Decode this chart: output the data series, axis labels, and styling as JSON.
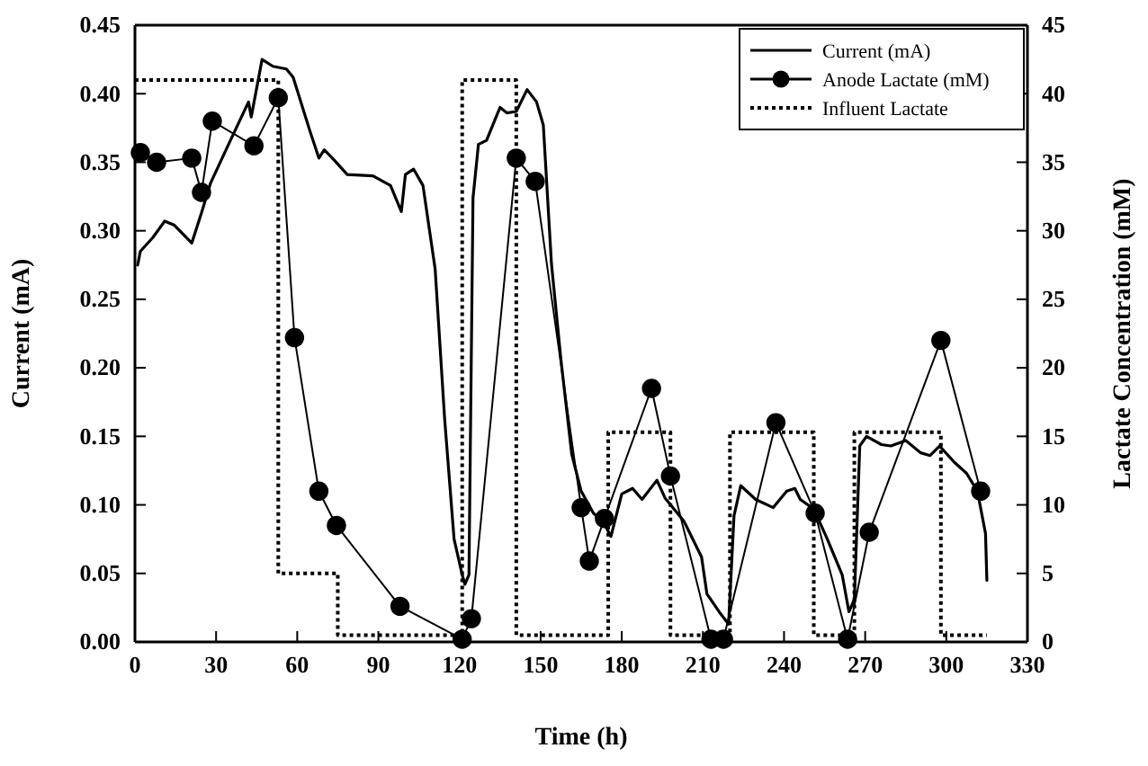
{
  "chart_data": {
    "type": "line",
    "xlabel": "Time (h)",
    "ylabel": "Current (mA)",
    "y2label": "Lactate Concentration (mM)",
    "xlim": [
      0,
      330
    ],
    "xticks": [
      0,
      30,
      60,
      90,
      120,
      150,
      180,
      210,
      240,
      270,
      300,
      330
    ],
    "ylim": [
      0,
      0.45
    ],
    "yticks": [
      {
        "value": 0,
        "label": "0.00"
      },
      {
        "value": 0.05,
        "label": "0.05"
      },
      {
        "value": 0.1,
        "label": "0.10"
      },
      {
        "value": 0.15,
        "label": "0.15"
      },
      {
        "value": 0.2,
        "label": "0.20"
      },
      {
        "value": 0.25,
        "label": "0.25"
      },
      {
        "value": 0.3,
        "label": "0.30"
      },
      {
        "value": 0.35,
        "label": "0.35"
      },
      {
        "value": 0.4,
        "label": "0.40"
      },
      {
        "value": 0.45,
        "label": "0.45"
      }
    ],
    "y2lim": [
      0,
      45
    ],
    "y2ticks": [
      0,
      5,
      10,
      15,
      20,
      25,
      30,
      35,
      40,
      45
    ],
    "grid": false,
    "legend": "top right",
    "series": [
      {
        "name": "Current (mA)",
        "color": "#000000",
        "marker": "none",
        "line_style": "solid",
        "x": [
          1,
          2,
          6.6,
          11,
          14.6,
          21,
          24.6,
          28,
          34.6,
          42,
          43,
          47,
          51,
          56,
          58.5,
          64.5,
          68,
          70,
          73,
          78.5,
          88,
          94.5,
          98.5,
          100,
          103,
          106.5,
          111,
          114.5,
          118,
          121,
          122,
          123.5,
          125,
          127,
          130,
          135,
          137.5,
          141,
          145,
          148.5,
          151,
          154,
          157.5,
          161.5,
          165,
          169.5,
          173,
          176,
          180,
          184,
          187.5,
          193,
          196,
          203,
          209.5,
          211.5,
          216,
          219.5,
          221.5,
          224,
          229.5,
          236,
          241,
          244,
          246,
          251,
          256,
          261.5,
          264,
          266,
          268,
          270.5,
          276,
          279.5,
          285,
          290.5,
          294,
          297.5,
          303,
          307.5,
          311.5,
          314.5,
          315
        ],
        "values": [
          0.275,
          0.285,
          0.295,
          0.307,
          0.304,
          0.291,
          0.313,
          0.335,
          0.363,
          0.394,
          0.383,
          0.425,
          0.42,
          0.418,
          0.412,
          0.374,
          0.353,
          0.359,
          0.353,
          0.341,
          0.34,
          0.333,
          0.314,
          0.341,
          0.345,
          0.333,
          0.272,
          0.163,
          0.075,
          0.049,
          0.042,
          0.049,
          0.324,
          0.363,
          0.366,
          0.39,
          0.386,
          0.387,
          0.403,
          0.394,
          0.377,
          0.276,
          0.206,
          0.137,
          0.11,
          0.094,
          0.088,
          0.077,
          0.108,
          0.112,
          0.104,
          0.118,
          0.105,
          0.088,
          0.062,
          0.035,
          0.022,
          0.013,
          0.092,
          0.114,
          0.104,
          0.098,
          0.11,
          0.112,
          0.104,
          0.097,
          0.075,
          0.049,
          0.022,
          0.031,
          0.143,
          0.15,
          0.144,
          0.143,
          0.147,
          0.138,
          0.136,
          0.143,
          0.131,
          0.123,
          0.11,
          0.079,
          0.045
        ]
      },
      {
        "name": "Anode Lactate (mM)",
        "type": "line",
        "axis": "y2",
        "color": "#000000",
        "marker": "circle",
        "line_style": "solid",
        "x": [
          2,
          8,
          21,
          24.6,
          28.6,
          44,
          53,
          59,
          68,
          74.5,
          98,
          121,
          124.4,
          141,
          148,
          165,
          168,
          173.6,
          191,
          198,
          213,
          217.6,
          237,
          251.5,
          263.5,
          271.5,
          298,
          312.7
        ],
        "values": [
          35.7,
          35,
          35.3,
          32.8,
          38,
          36.2,
          39.7,
          22.2,
          11,
          8.5,
          2.6,
          0.2,
          1.7,
          35.3,
          33.6,
          9.8,
          5.9,
          9,
          18.5,
          12.1,
          0.2,
          0.2,
          16,
          9.4,
          0.2,
          8,
          22,
          11
        ]
      },
      {
        "name": "Influent Lactate",
        "type": "step",
        "axis": "y2",
        "color": "#000000",
        "marker": "none",
        "line_style": "dotted",
        "x": [
          0,
          53,
          75,
          121,
          141,
          175,
          198,
          220,
          251,
          266,
          298,
          315
        ],
        "values": [
          41,
          5,
          0.5,
          41,
          0.5,
          15.3,
          0.5,
          15.3,
          0.5,
          15.3,
          0.5,
          0.5
        ]
      }
    ]
  }
}
